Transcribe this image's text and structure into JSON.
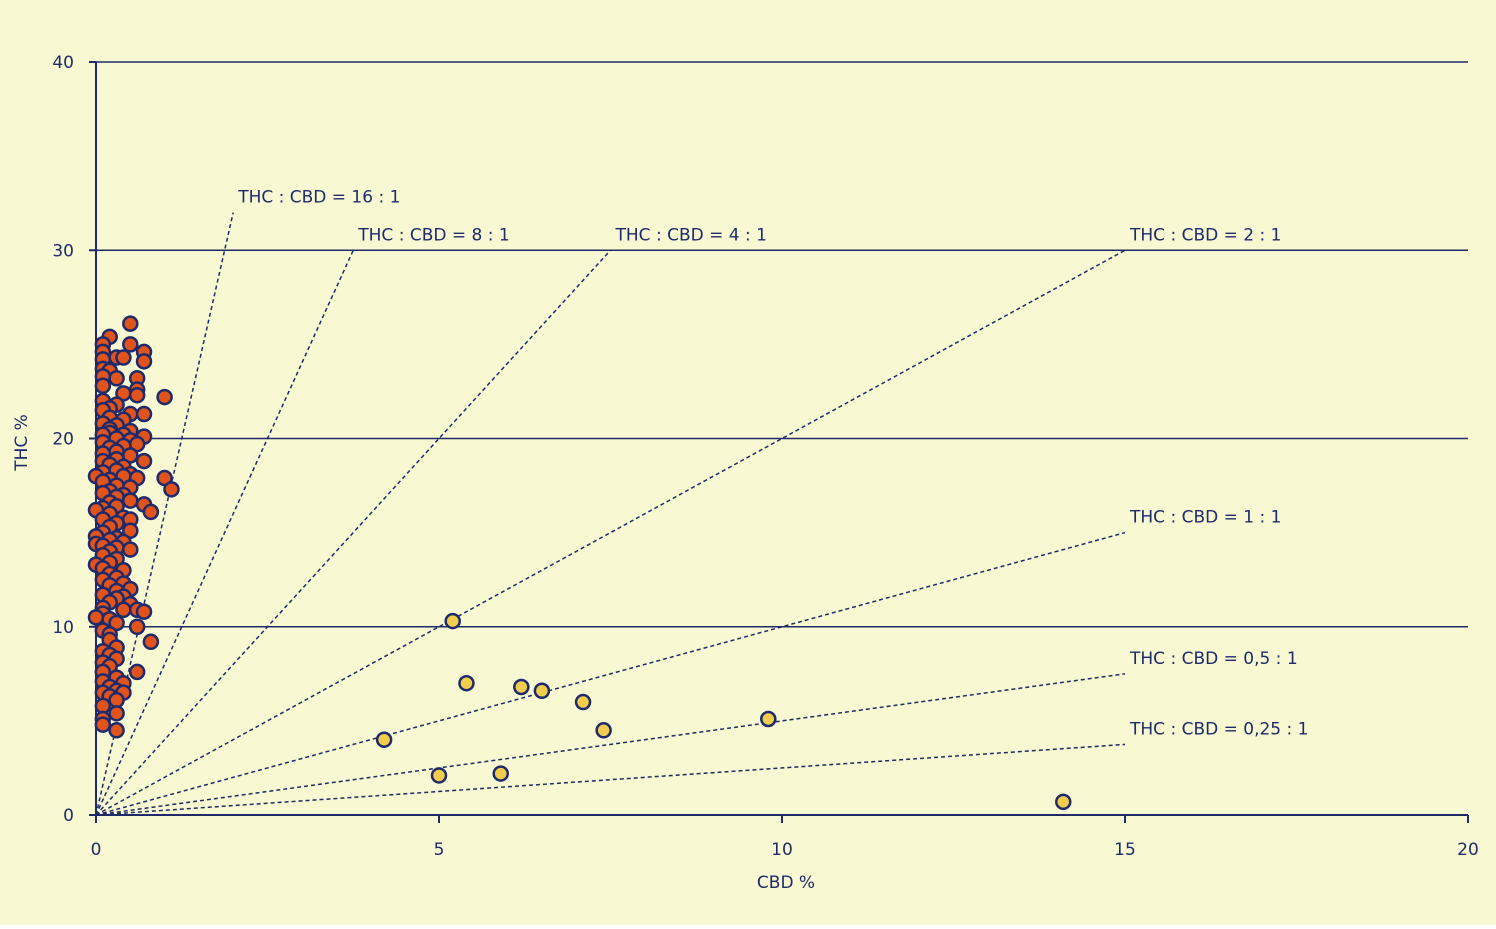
{
  "colors": {
    "background": "#f8f8d2",
    "axis": "#1f2a6b",
    "ratio_line": "#1f2a6b",
    "high_thc_fill": "#e0541c",
    "balanced_fill": "#f2cc4c",
    "marker_stroke": "#1f2a6b"
  },
  "chart_data": {
    "type": "scatter",
    "title": "",
    "xlabel": "CBD %",
    "ylabel": "THC %",
    "xlim": [
      0,
      20
    ],
    "ylim": [
      0,
      40
    ],
    "xticks": [
      "0",
      "5",
      "10",
      "15",
      "20"
    ],
    "yticks": [
      "0",
      "10",
      "20",
      "30",
      "40"
    ],
    "grid": "horizontal",
    "ratio_lines": [
      {
        "label": "THC : CBD = 16 : 1",
        "slope": 16,
        "x_end": 2.0
      },
      {
        "label": "THC : CBD = 8 : 1",
        "slope": 8,
        "x_end": 3.75
      },
      {
        "label": "THC : CBD = 4 : 1",
        "slope": 4,
        "x_end": 7.5
      },
      {
        "label": "THC : CBD = 2 : 1",
        "slope": 2,
        "x_end": 15
      },
      {
        "label": "THC : CBD = 1 : 1",
        "slope": 1,
        "x_end": 15
      },
      {
        "label": "THC : CBD = 0,5 : 1",
        "slope": 0.5,
        "x_end": 15
      },
      {
        "label": "THC : CBD = 0,25 : 1",
        "slope": 0.25,
        "x_end": 15
      }
    ],
    "series": [
      {
        "color": "#e0541c",
        "points": [
          [
            0.5,
            26.1
          ],
          [
            0.2,
            25.4
          ],
          [
            0.1,
            25.0
          ],
          [
            0.5,
            25.0
          ],
          [
            0.1,
            24.6
          ],
          [
            0.7,
            24.6
          ],
          [
            0.3,
            24.3
          ],
          [
            0.4,
            24.3
          ],
          [
            0.1,
            24.2
          ],
          [
            0.7,
            24.1
          ],
          [
            0.1,
            23.7
          ],
          [
            0.2,
            23.6
          ],
          [
            0.1,
            23.3
          ],
          [
            0.3,
            23.2
          ],
          [
            0.6,
            23.2
          ],
          [
            0.1,
            22.8
          ],
          [
            0.6,
            22.6
          ],
          [
            0.4,
            22.4
          ],
          [
            0.6,
            22.3
          ],
          [
            1.0,
            22.2
          ],
          [
            0.1,
            22.0
          ],
          [
            0.3,
            21.8
          ],
          [
            0.2,
            21.6
          ],
          [
            0.1,
            21.5
          ],
          [
            0.5,
            21.3
          ],
          [
            0.7,
            21.3
          ],
          [
            0.2,
            21.1
          ],
          [
            0.4,
            21.0
          ],
          [
            0.1,
            20.8
          ],
          [
            0.3,
            20.7
          ],
          [
            0.2,
            20.5
          ],
          [
            0.5,
            20.4
          ],
          [
            0.2,
            20.3
          ],
          [
            0.4,
            20.2
          ],
          [
            0.1,
            20.2
          ],
          [
            0.7,
            20.1
          ],
          [
            0.3,
            20.0
          ],
          [
            0.5,
            19.9
          ],
          [
            0.1,
            19.8
          ],
          [
            0.6,
            19.7
          ],
          [
            0.4,
            19.6
          ],
          [
            0.2,
            19.5
          ],
          [
            0.3,
            19.3
          ],
          [
            0.1,
            19.2
          ],
          [
            0.5,
            19.1
          ],
          [
            0.3,
            18.9
          ],
          [
            0.1,
            18.8
          ],
          [
            0.7,
            18.8
          ],
          [
            0.2,
            18.6
          ],
          [
            0.4,
            18.5
          ],
          [
            0.3,
            18.3
          ],
          [
            0.1,
            18.2
          ],
          [
            0.5,
            18.1
          ],
          [
            0.0,
            18.0
          ],
          [
            0.4,
            18.0
          ],
          [
            0.6,
            17.9
          ],
          [
            1.0,
            17.9
          ],
          [
            0.2,
            17.8
          ],
          [
            0.1,
            17.7
          ],
          [
            0.3,
            17.5
          ],
          [
            0.5,
            17.4
          ],
          [
            1.1,
            17.3
          ],
          [
            0.2,
            17.2
          ],
          [
            0.1,
            17.1
          ],
          [
            0.4,
            17.0
          ],
          [
            0.3,
            16.9
          ],
          [
            0.5,
            16.7
          ],
          [
            0.2,
            16.6
          ],
          [
            0.7,
            16.5
          ],
          [
            0.3,
            16.4
          ],
          [
            0.1,
            16.3
          ],
          [
            0.0,
            16.2
          ],
          [
            0.8,
            16.1
          ],
          [
            0.2,
            16.0
          ],
          [
            0.4,
            15.8
          ],
          [
            0.1,
            15.7
          ],
          [
            0.5,
            15.7
          ],
          [
            0.3,
            15.5
          ],
          [
            0.2,
            15.3
          ],
          [
            0.5,
            15.1
          ],
          [
            0.1,
            15.0
          ],
          [
            0.0,
            14.8
          ],
          [
            0.3,
            14.7
          ],
          [
            0.2,
            14.6
          ],
          [
            0.4,
            14.5
          ],
          [
            0.0,
            14.4
          ],
          [
            0.1,
            14.3
          ],
          [
            0.3,
            14.2
          ],
          [
            0.5,
            14.1
          ],
          [
            0.2,
            14.0
          ],
          [
            0.1,
            13.8
          ],
          [
            0.3,
            13.6
          ],
          [
            0.2,
            13.4
          ],
          [
            0.0,
            13.3
          ],
          [
            0.1,
            13.1
          ],
          [
            0.4,
            13.0
          ],
          [
            0.2,
            12.8
          ],
          [
            0.3,
            12.6
          ],
          [
            0.1,
            12.5
          ],
          [
            0.4,
            12.3
          ],
          [
            0.2,
            12.2
          ],
          [
            0.5,
            12.0
          ],
          [
            0.3,
            11.9
          ],
          [
            0.1,
            11.7
          ],
          [
            0.4,
            11.6
          ],
          [
            0.3,
            11.5
          ],
          [
            0.2,
            11.3
          ],
          [
            0.5,
            11.2
          ],
          [
            0.1,
            11.0
          ],
          [
            0.4,
            10.9
          ],
          [
            0.6,
            10.9
          ],
          [
            0.7,
            10.8
          ],
          [
            0.1,
            10.7
          ],
          [
            0.0,
            10.5
          ],
          [
            0.2,
            10.4
          ],
          [
            0.3,
            10.2
          ],
          [
            0.6,
            10.0
          ],
          [
            0.1,
            9.8
          ],
          [
            0.2,
            9.6
          ],
          [
            0.2,
            9.3
          ],
          [
            0.8,
            9.2
          ],
          [
            0.3,
            8.9
          ],
          [
            0.1,
            8.7
          ],
          [
            0.2,
            8.5
          ],
          [
            0.3,
            8.3
          ],
          [
            0.1,
            8.1
          ],
          [
            0.2,
            7.9
          ],
          [
            0.1,
            7.6
          ],
          [
            0.6,
            7.6
          ],
          [
            0.3,
            7.3
          ],
          [
            0.1,
            7.1
          ],
          [
            0.4,
            7.0
          ],
          [
            0.2,
            6.8
          ],
          [
            0.3,
            6.6
          ],
          [
            0.1,
            6.5
          ],
          [
            0.4,
            6.5
          ],
          [
            0.2,
            6.3
          ],
          [
            0.3,
            6.1
          ],
          [
            0.1,
            5.8
          ],
          [
            0.3,
            5.4
          ],
          [
            0.1,
            5.1
          ],
          [
            0.1,
            4.8
          ],
          [
            0.3,
            4.5
          ]
        ]
      },
      {
        "color": "#f2cc4c",
        "points": [
          [
            5.2,
            10.3
          ],
          [
            5.4,
            7.0
          ],
          [
            6.2,
            6.8
          ],
          [
            6.5,
            6.6
          ],
          [
            7.1,
            6.0
          ],
          [
            7.4,
            4.5
          ],
          [
            9.8,
            5.1
          ],
          [
            4.2,
            4.0
          ],
          [
            5.0,
            2.1
          ],
          [
            5.9,
            2.2
          ],
          [
            14.1,
            0.7
          ]
        ]
      }
    ]
  }
}
